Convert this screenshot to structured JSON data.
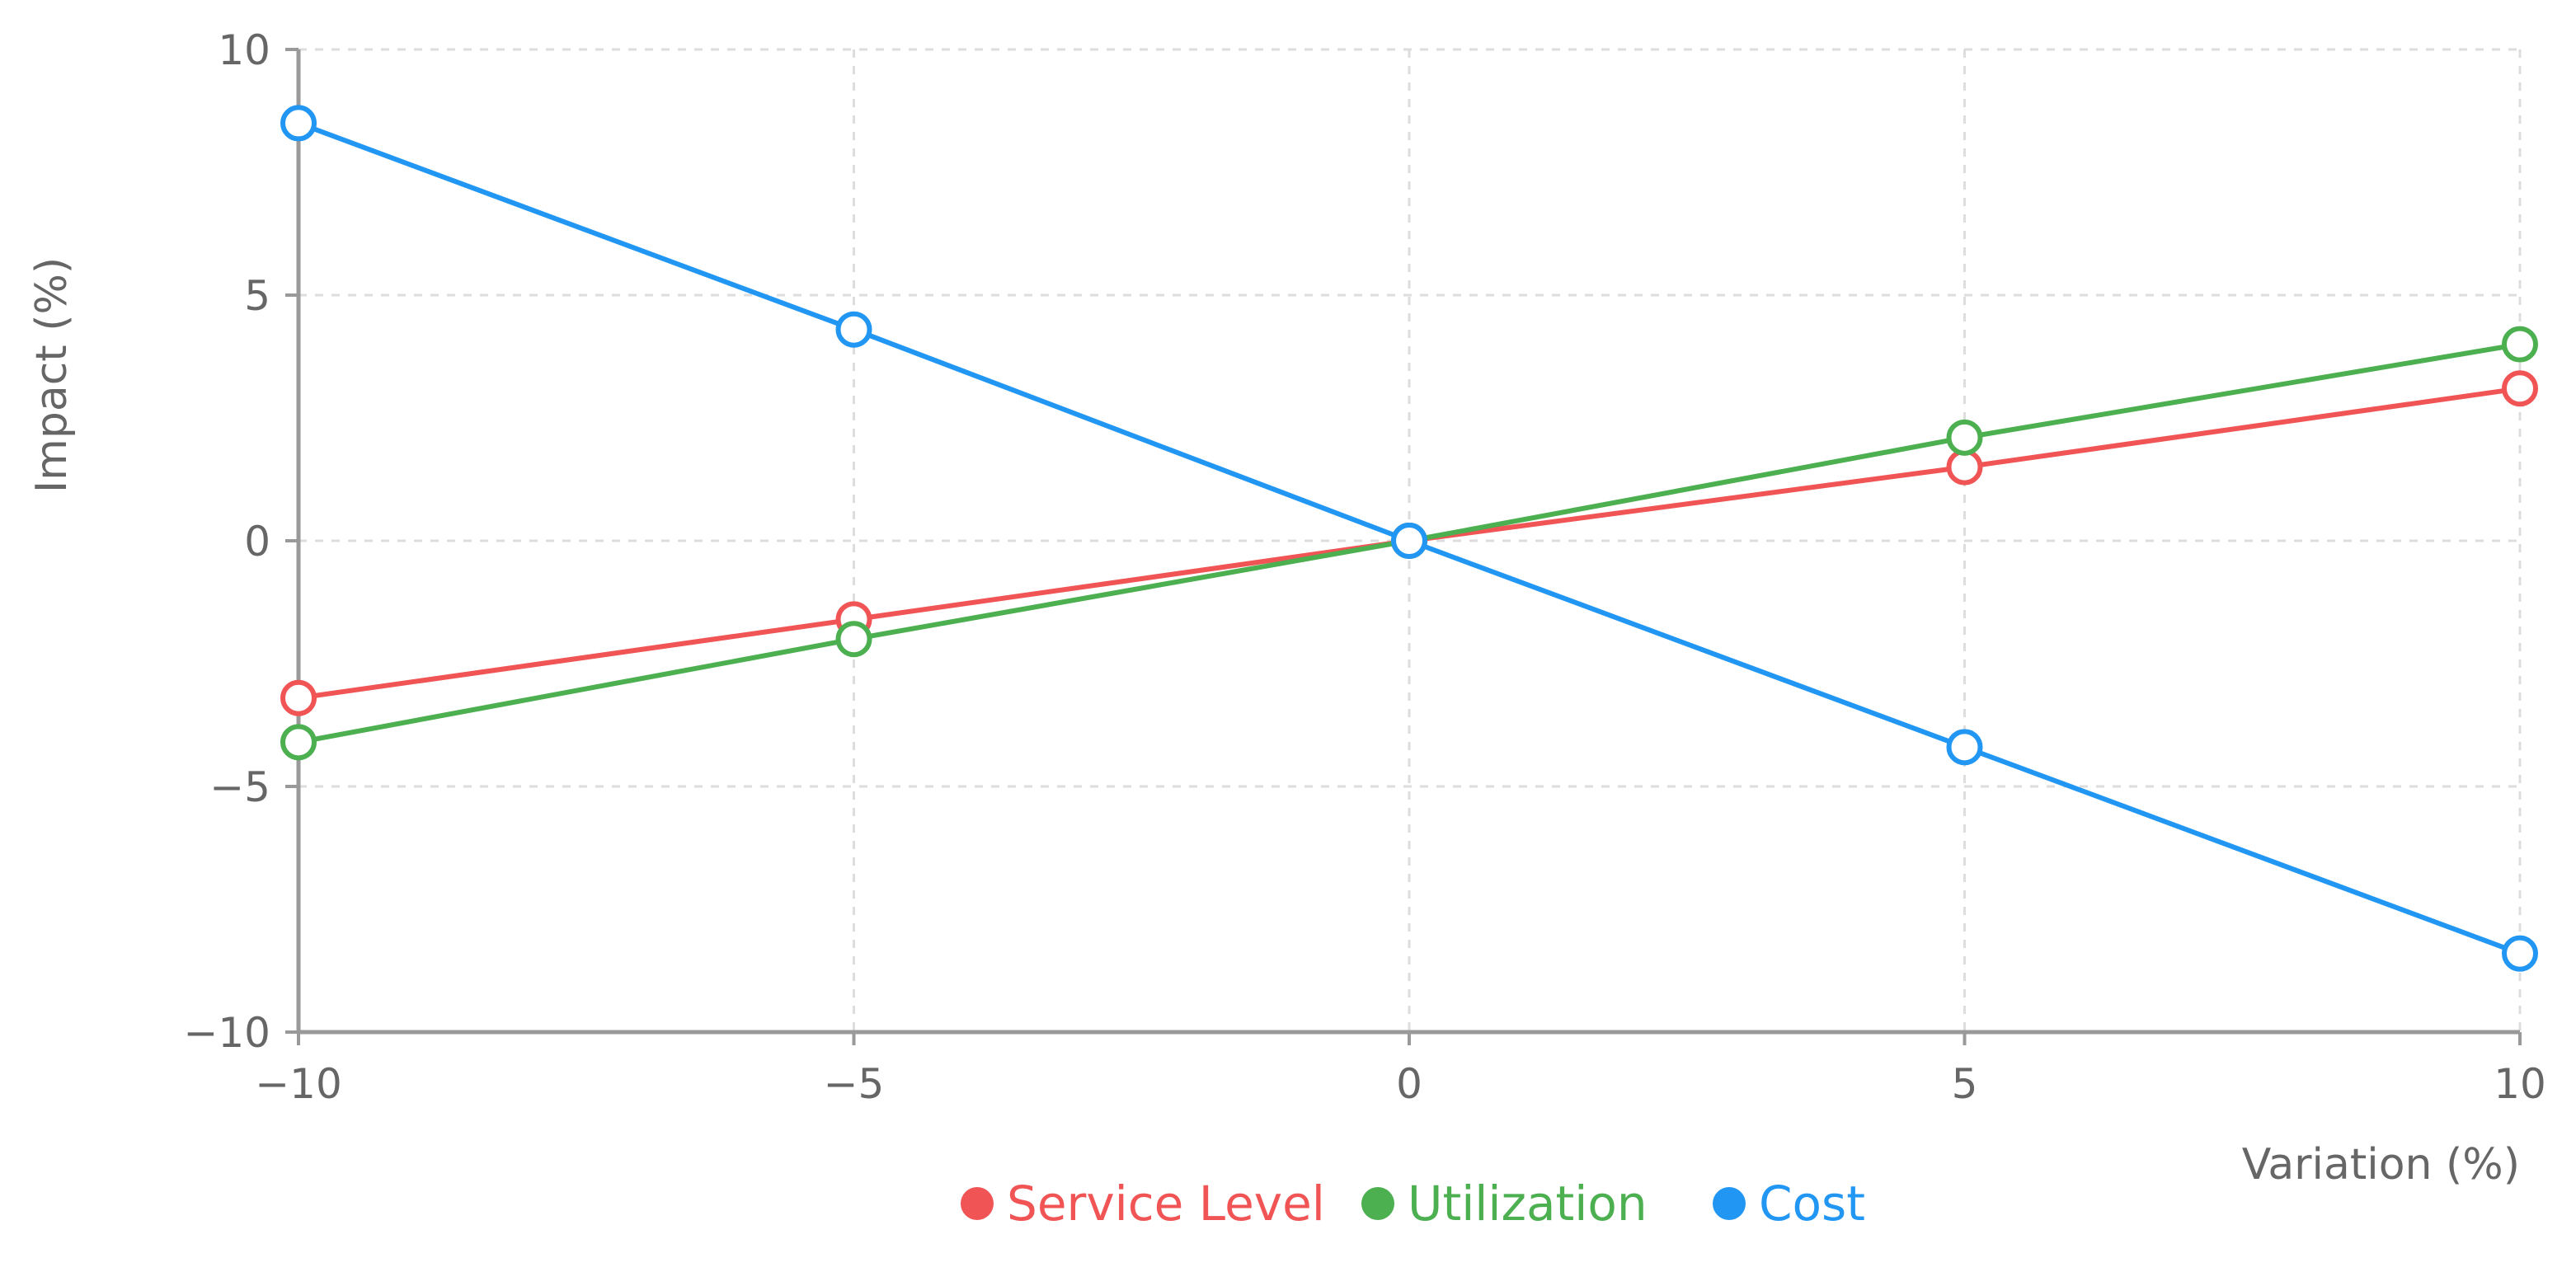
{
  "chart_data": {
    "type": "line",
    "title": "",
    "xlabel": "Variation (%)",
    "ylabel": "Impact (%)",
    "xlim": [
      -10,
      10
    ],
    "ylim": [
      -10,
      10
    ],
    "x_ticks": [
      -10,
      -5,
      0,
      5,
      10
    ],
    "y_ticks": [
      -10,
      -5,
      0,
      5,
      10
    ],
    "x_tick_labels": [
      "−10",
      "−5",
      "0",
      "5",
      "10"
    ],
    "y_tick_labels": [
      "−10",
      "−5",
      "0",
      "5",
      "10"
    ],
    "grid": true,
    "legend_position": "bottom",
    "x": [
      -10,
      -5,
      0,
      5,
      10
    ],
    "series": [
      {
        "name": "Service Level",
        "color": "#f05454",
        "values": [
          -3.2,
          -1.6,
          0,
          1.5,
          3.1
        ]
      },
      {
        "name": "Utilization",
        "color": "#4caf50",
        "values": [
          -4.1,
          -2.0,
          0,
          2.1,
          4.0
        ]
      },
      {
        "name": "Cost",
        "color": "#2196f3",
        "values": [
          8.5,
          4.3,
          0,
          -4.2,
          -8.4
        ]
      }
    ]
  }
}
